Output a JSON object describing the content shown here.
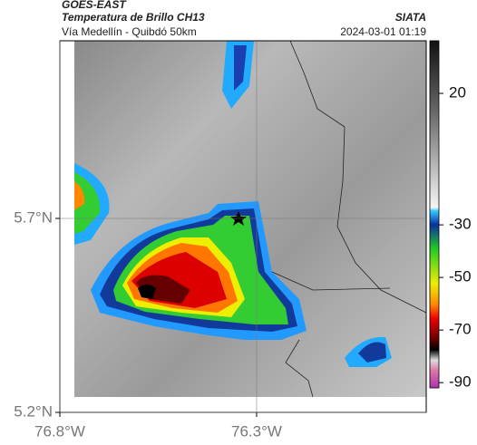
{
  "header": {
    "title": "GOES-EAST",
    "subtitle": "Temperatura de Brillo CH13",
    "source": "SIATA",
    "route": "Vía Medellín - Quibdó 50km",
    "timestamp": "2024-03-01 01:19"
  },
  "map": {
    "xlim": [
      -76.8,
      -75.869
    ],
    "ylim": [
      5.2,
      6.158
    ],
    "xticks": [
      {
        "value": -76.8,
        "label": "76.8°W"
      },
      {
        "value": -76.3,
        "label": "76.3°W"
      }
    ],
    "yticks": [
      {
        "value": 5.7,
        "label": "5.7°N"
      },
      {
        "value": 5.2,
        "label": "5.2°N"
      }
    ],
    "grid": true
  },
  "colorbar": {
    "clim": [
      40,
      -92
    ],
    "ticks": [
      20,
      -30,
      -50,
      -70,
      -90
    ]
  }
}
